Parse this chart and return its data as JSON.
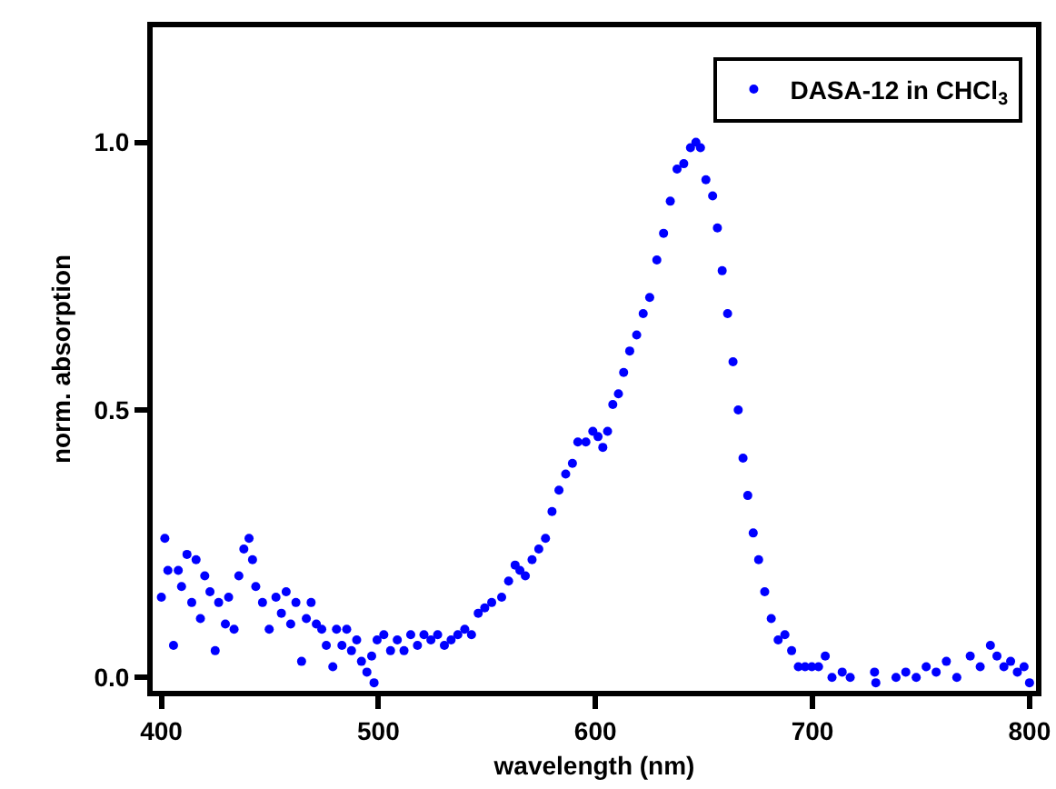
{
  "chart_data": {
    "type": "scatter",
    "xlabel": "wavelength (nm)",
    "ylabel": "norm. absorption",
    "xlim": [
      396,
      803
    ],
    "ylim": [
      -0.025,
      1.215
    ],
    "xticks": [
      400,
      500,
      600,
      700,
      800
    ],
    "yticks": [
      {
        "value": 0,
        "label": "0.0"
      },
      {
        "value": 0.5,
        "label": "0.5"
      },
      {
        "value": 1,
        "label": "1.0"
      }
    ],
    "legend": "top right",
    "marker": "circle",
    "series": [
      {
        "name": "DASA-12 in CHCl$_{3}$",
        "color": "#0000ff",
        "x": [
          400,
          401.6,
          403,
          405.6,
          407.8,
          409.3,
          411.8,
          414,
          416,
          418,
          420,
          422.4,
          424.8,
          426.4,
          429.5,
          431,
          433.5,
          435.7,
          438,
          440.4,
          442,
          443.5,
          446.6,
          449.7,
          452.8,
          455.3,
          457.5,
          459.6,
          462,
          464.6,
          466.8,
          469,
          471.4,
          473.9,
          476,
          479,
          480.7,
          483.2,
          485.4,
          487.6,
          490,
          492.2,
          494.7,
          496.9,
          498,
          499.4,
          502.5,
          505.6,
          508.7,
          511.8,
          514.9,
          518,
          521,
          524.2,
          527.3,
          530.4,
          533.5,
          536.6,
          539.8,
          542.9,
          546,
          549,
          552.2,
          556.8,
          560,
          563,
          565.2,
          567.7,
          570.8,
          573.9,
          577,
          580,
          583.2,
          586.3,
          589.4,
          591.9,
          595.6,
          598.8,
          601.2,
          603.4,
          605.6,
          608,
          610.6,
          613,
          615.8,
          619,
          622,
          625,
          628.3,
          631.4,
          634.5,
          637.6,
          640.7,
          643.8,
          646.3,
          648.4,
          650.9,
          654,
          656.2,
          658.4,
          660.9,
          663.4,
          665.8,
          668,
          670.2,
          672.7,
          675.2,
          678,
          681,
          684.2,
          687.3,
          690.4,
          693.5,
          696.6,
          699.7,
          702.8,
          705.9,
          709,
          713.7,
          717.4,
          728.6,
          729.2,
          738.5,
          743,
          747.8,
          752.4,
          757,
          761.7,
          766.5,
          772.7,
          777.3,
          782,
          785,
          788.2,
          791.3,
          794.4,
          797.5,
          800
        ],
        "values": [
          0.15,
          0.26,
          0.2,
          0.06,
          0.2,
          0.17,
          0.23,
          0.14,
          0.22,
          0.11,
          0.19,
          0.16,
          0.05,
          0.14,
          0.1,
          0.15,
          0.09,
          0.19,
          0.24,
          0.26,
          0.22,
          0.17,
          0.14,
          0.09,
          0.15,
          0.12,
          0.16,
          0.1,
          0.14,
          0.03,
          0.11,
          0.14,
          0.1,
          0.09,
          0.06,
          0.02,
          0.09,
          0.06,
          0.09,
          0.05,
          0.07,
          0.03,
          0.01,
          0.04,
          -0.01,
          0.07,
          0.08,
          0.05,
          0.07,
          0.05,
          0.08,
          0.06,
          0.08,
          0.07,
          0.08,
          0.06,
          0.07,
          0.08,
          0.09,
          0.08,
          0.12,
          0.13,
          0.14,
          0.15,
          0.18,
          0.21,
          0.2,
          0.19,
          0.22,
          0.24,
          0.26,
          0.31,
          0.35,
          0.38,
          0.4,
          0.44,
          0.44,
          0.46,
          0.45,
          0.43,
          0.46,
          0.51,
          0.53,
          0.57,
          0.61,
          0.64,
          0.68,
          0.71,
          0.78,
          0.83,
          0.89,
          0.95,
          0.96,
          0.99,
          1.0,
          0.99,
          0.93,
          0.9,
          0.84,
          0.76,
          0.68,
          0.59,
          0.5,
          0.41,
          0.34,
          0.27,
          0.22,
          0.16,
          0.11,
          0.07,
          0.08,
          0.05,
          0.02,
          0.02,
          0.02,
          0.02,
          0.04,
          0.0,
          0.01,
          0.0,
          0.01,
          -0.01,
          0.0,
          0.01,
          0.0,
          0.02,
          0.01,
          0.03,
          0.0,
          0.04,
          0.02,
          0.06,
          0.04,
          0.02,
          0.03,
          0.01,
          0.02,
          -0.01
        ]
      }
    ]
  }
}
